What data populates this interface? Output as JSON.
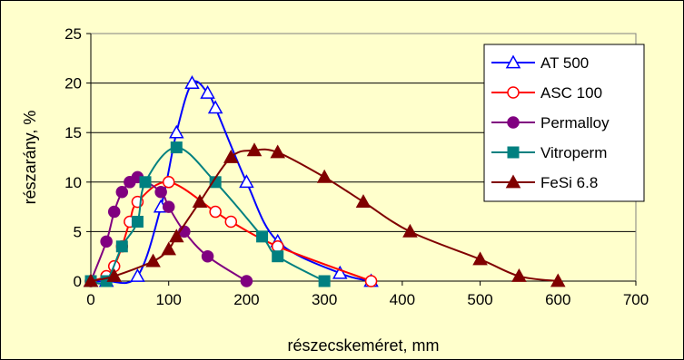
{
  "chart_data": {
    "type": "line",
    "title": "",
    "xlabel": "részecskeméret, mm",
    "ylabel": "részarány, %",
    "xlim": [
      0,
      700
    ],
    "ylim": [
      0,
      25
    ],
    "xticks": [
      "0",
      "100",
      "200",
      "300",
      "400",
      "500",
      "600",
      "700"
    ],
    "yticks": [
      "0",
      "5",
      "10",
      "15",
      "20",
      "25"
    ],
    "grid": "horizontal",
    "legend": "top-right",
    "series": [
      {
        "name": "AT 500",
        "color": "#0000ff",
        "marker": "triangle-open",
        "points": [
          [
            0,
            0
          ],
          [
            20,
            0
          ],
          [
            60,
            0.5
          ],
          [
            90,
            7.5
          ],
          [
            110,
            15
          ],
          [
            130,
            20
          ],
          [
            150,
            19
          ],
          [
            160,
            17.5
          ],
          [
            200,
            10
          ],
          [
            240,
            4
          ],
          [
            320,
            0.8
          ],
          [
            360,
            0
          ]
        ]
      },
      {
        "name": "ASC 100",
        "color": "#ff0000",
        "marker": "circle-open",
        "points": [
          [
            0,
            0
          ],
          [
            20,
            0.5
          ],
          [
            30,
            1.5
          ],
          [
            40,
            3.5
          ],
          [
            50,
            6
          ],
          [
            60,
            8
          ],
          [
            100,
            10
          ],
          [
            160,
            7
          ],
          [
            180,
            6
          ],
          [
            240,
            3.5
          ],
          [
            360,
            0
          ]
        ]
      },
      {
        "name": "Permalloy",
        "color": "#800080",
        "marker": "circle-filled",
        "points": [
          [
            0,
            0
          ],
          [
            20,
            4
          ],
          [
            30,
            7
          ],
          [
            40,
            9
          ],
          [
            50,
            10
          ],
          [
            60,
            10.5
          ],
          [
            90,
            9
          ],
          [
            100,
            7.5
          ],
          [
            120,
            5
          ],
          [
            150,
            2.5
          ],
          [
            200,
            0
          ]
        ]
      },
      {
        "name": "Vitroperm",
        "color": "#008080",
        "marker": "square-filled",
        "points": [
          [
            0,
            0
          ],
          [
            20,
            0
          ],
          [
            40,
            3.5
          ],
          [
            60,
            6
          ],
          [
            70,
            10
          ],
          [
            110,
            13.5
          ],
          [
            160,
            10
          ],
          [
            220,
            4.5
          ],
          [
            240,
            2.5
          ],
          [
            300,
            0
          ]
        ]
      },
      {
        "name": "FeSi 6.8",
        "color": "#800000",
        "marker": "triangle-filled",
        "points": [
          [
            0,
            0
          ],
          [
            30,
            0.5
          ],
          [
            80,
            2
          ],
          [
            100,
            3.2
          ],
          [
            110,
            4.5
          ],
          [
            140,
            8
          ],
          [
            180,
            12.5
          ],
          [
            210,
            13.2
          ],
          [
            240,
            13
          ],
          [
            300,
            10.5
          ],
          [
            350,
            8
          ],
          [
            410,
            5
          ],
          [
            500,
            2.2
          ],
          [
            550,
            0.5
          ],
          [
            600,
            0
          ]
        ]
      }
    ]
  }
}
